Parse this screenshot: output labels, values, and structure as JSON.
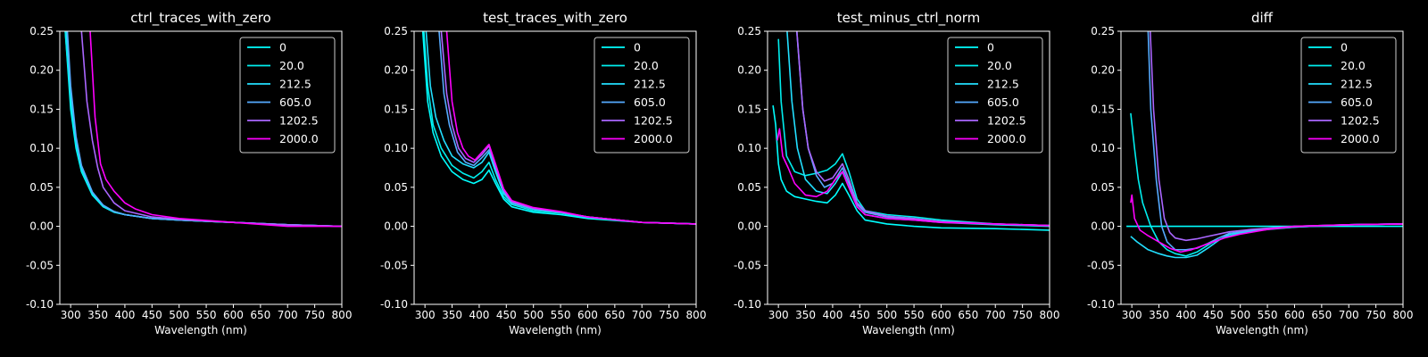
{
  "chart_data": [
    {
      "type": "line",
      "title": "ctrl_traces_with_zero",
      "xlabel": "Wavelength (nm)",
      "ylabel": "",
      "xlim": [
        280,
        800
      ],
      "ylim": [
        -0.1,
        0.25
      ],
      "xticks": [
        300,
        350,
        400,
        450,
        500,
        550,
        600,
        650,
        700,
        750,
        800
      ],
      "yticks": [
        -0.1,
        -0.05,
        0.0,
        0.05,
        0.1,
        0.15,
        0.2,
        0.25
      ],
      "legend_position": "top-right",
      "series": [
        {
          "name": "0",
          "color": "#00ffff",
          "x": [
            290,
            300,
            310,
            320,
            340,
            360,
            380,
            400,
            450,
            500,
            600,
            700,
            800
          ],
          "y": [
            0.25,
            0.15,
            0.1,
            0.07,
            0.04,
            0.025,
            0.018,
            0.015,
            0.01,
            0.008,
            0.005,
            0.002,
            0.0
          ]
        },
        {
          "name": "20.0",
          "color": "#00eeee",
          "x": [
            290,
            300,
            310,
            320,
            340,
            360,
            380,
            400,
            450,
            500,
            600,
            700,
            800
          ],
          "y": [
            0.25,
            0.16,
            0.105,
            0.072,
            0.042,
            0.026,
            0.019,
            0.015,
            0.01,
            0.008,
            0.005,
            0.002,
            0.0
          ]
        },
        {
          "name": "212.5",
          "color": "#22dfff",
          "x": [
            292,
            300,
            310,
            320,
            340,
            360,
            380,
            400,
            450,
            500,
            600,
            700,
            800
          ],
          "y": [
            0.25,
            0.17,
            0.11,
            0.075,
            0.043,
            0.027,
            0.019,
            0.015,
            0.01,
            0.008,
            0.005,
            0.002,
            0.0
          ]
        },
        {
          "name": "605.0",
          "color": "#55aaff",
          "x": [
            294,
            300,
            310,
            320,
            340,
            360,
            380,
            400,
            450,
            500,
            600,
            700,
            800
          ],
          "y": [
            0.25,
            0.18,
            0.115,
            0.078,
            0.044,
            0.027,
            0.019,
            0.015,
            0.01,
            0.008,
            0.005,
            0.002,
            0.0
          ]
        },
        {
          "name": "1202.5",
          "color": "#aa66ff",
          "x": [
            320,
            330,
            340,
            350,
            360,
            380,
            400,
            450,
            500,
            600,
            700,
            800
          ],
          "y": [
            0.25,
            0.16,
            0.11,
            0.075,
            0.05,
            0.03,
            0.02,
            0.012,
            0.009,
            0.005,
            0.002,
            0.0
          ]
        },
        {
          "name": "2000.0",
          "color": "#ff00ff",
          "x": [
            336,
            345,
            355,
            365,
            380,
            400,
            420,
            450,
            500,
            600,
            700,
            800
          ],
          "y": [
            0.25,
            0.14,
            0.08,
            0.06,
            0.045,
            0.03,
            0.022,
            0.015,
            0.01,
            0.005,
            0.0,
            0.0
          ]
        }
      ]
    },
    {
      "type": "line",
      "title": "test_traces_with_zero",
      "xlabel": "Wavelength (nm)",
      "ylabel": "",
      "xlim": [
        280,
        800
      ],
      "ylim": [
        -0.1,
        0.25
      ],
      "xticks": [
        300,
        350,
        400,
        450,
        500,
        550,
        600,
        650,
        700,
        750,
        800
      ],
      "yticks": [
        -0.1,
        -0.05,
        0.0,
        0.05,
        0.1,
        0.15,
        0.2,
        0.25
      ],
      "legend_position": "top-right",
      "series": [
        {
          "name": "0",
          "color": "#00ffff",
          "x": [
            296,
            305,
            315,
            330,
            350,
            370,
            390,
            405,
            418,
            430,
            445,
            460,
            500,
            550,
            600,
            700,
            800
          ],
          "y": [
            0.25,
            0.16,
            0.12,
            0.09,
            0.07,
            0.06,
            0.055,
            0.06,
            0.072,
            0.055,
            0.035,
            0.025,
            0.018,
            0.015,
            0.01,
            0.005,
            0.003
          ]
        },
        {
          "name": "20.0",
          "color": "#00eeee",
          "x": [
            298,
            305,
            315,
            330,
            350,
            370,
            390,
            405,
            418,
            430,
            445,
            460,
            500,
            550,
            600,
            700,
            800
          ],
          "y": [
            0.25,
            0.18,
            0.13,
            0.1,
            0.078,
            0.068,
            0.062,
            0.07,
            0.082,
            0.06,
            0.038,
            0.028,
            0.02,
            0.017,
            0.011,
            0.005,
            0.003
          ]
        },
        {
          "name": "212.5",
          "color": "#22dfff",
          "x": [
            302,
            310,
            320,
            335,
            350,
            370,
            390,
            405,
            418,
            430,
            445,
            460,
            500,
            550,
            600,
            700,
            800
          ],
          "y": [
            0.25,
            0.18,
            0.14,
            0.11,
            0.09,
            0.08,
            0.075,
            0.082,
            0.095,
            0.07,
            0.042,
            0.03,
            0.022,
            0.018,
            0.012,
            0.005,
            0.003
          ]
        },
        {
          "name": "605.0",
          "color": "#55aaff",
          "x": [
            326,
            335,
            345,
            360,
            375,
            390,
            405,
            418,
            430,
            445,
            460,
            500,
            550,
            600,
            700,
            800
          ],
          "y": [
            0.25,
            0.17,
            0.13,
            0.095,
            0.082,
            0.078,
            0.088,
            0.098,
            0.075,
            0.045,
            0.03,
            0.022,
            0.018,
            0.012,
            0.005,
            0.003
          ]
        },
        {
          "name": "1202.5",
          "color": "#aa66ff",
          "x": [
            330,
            340,
            350,
            362,
            375,
            390,
            405,
            418,
            430,
            445,
            460,
            500,
            550,
            600,
            700,
            800
          ],
          "y": [
            0.25,
            0.17,
            0.13,
            0.1,
            0.087,
            0.082,
            0.092,
            0.103,
            0.078,
            0.047,
            0.032,
            0.023,
            0.018,
            0.012,
            0.005,
            0.003
          ]
        },
        {
          "name": "2000.0",
          "color": "#ff00ff",
          "x": [
            340,
            350,
            360,
            370,
            380,
            392,
            405,
            418,
            430,
            445,
            460,
            500,
            550,
            600,
            700,
            800
          ],
          "y": [
            0.25,
            0.16,
            0.12,
            0.1,
            0.09,
            0.085,
            0.095,
            0.105,
            0.08,
            0.048,
            0.033,
            0.024,
            0.019,
            0.012,
            0.005,
            0.003
          ]
        }
      ]
    },
    {
      "type": "line",
      "title": "test_minus_ctrl_norm",
      "xlabel": "Wavelength (nm)",
      "ylabel": "",
      "xlim": [
        280,
        800
      ],
      "ylim": [
        -0.1,
        0.25
      ],
      "xticks": [
        300,
        350,
        400,
        450,
        500,
        550,
        600,
        650,
        700,
        750,
        800
      ],
      "yticks": [
        -0.1,
        -0.05,
        0.0,
        0.05,
        0.1,
        0.15,
        0.2,
        0.25
      ],
      "legend_position": "top-right",
      "series": [
        {
          "name": "0",
          "color": "#00ffff",
          "x": [
            290,
            295,
            300,
            305,
            315,
            330,
            350,
            370,
            390,
            405,
            418,
            430,
            445,
            460,
            500,
            550,
            600,
            700,
            800
          ],
          "y": [
            0.155,
            0.13,
            0.08,
            0.06,
            0.045,
            0.038,
            0.035,
            0.032,
            0.03,
            0.04,
            0.055,
            0.04,
            0.02,
            0.008,
            0.003,
            0.0,
            -0.002,
            -0.003,
            -0.005
          ]
        },
        {
          "name": "20.0",
          "color": "#00eeee",
          "x": [
            300,
            305,
            315,
            330,
            350,
            370,
            390,
            405,
            418,
            430,
            445,
            460,
            500,
            550,
            600,
            700,
            800
          ],
          "y": [
            0.24,
            0.16,
            0.09,
            0.07,
            0.065,
            0.068,
            0.072,
            0.08,
            0.093,
            0.07,
            0.035,
            0.02,
            0.015,
            0.012,
            0.008,
            0.003,
            0.001
          ]
        },
        {
          "name": "212.5",
          "color": "#22dfff",
          "x": [
            316,
            325,
            335,
            350,
            370,
            390,
            405,
            418,
            430,
            445,
            460,
            500,
            550,
            600,
            700,
            800
          ],
          "y": [
            0.25,
            0.16,
            0.1,
            0.06,
            0.045,
            0.042,
            0.055,
            0.07,
            0.05,
            0.025,
            0.015,
            0.01,
            0.008,
            0.005,
            0.002,
            0.0
          ]
        },
        {
          "name": "605.0",
          "color": "#55aaff",
          "x": [
            334,
            345,
            355,
            370,
            385,
            400,
            418,
            430,
            445,
            460,
            500,
            550,
            600,
            700,
            800
          ],
          "y": [
            0.25,
            0.15,
            0.1,
            0.065,
            0.05,
            0.055,
            0.075,
            0.055,
            0.028,
            0.018,
            0.012,
            0.009,
            0.006,
            0.003,
            0.001
          ]
        },
        {
          "name": "1202.5",
          "color": "#aa66ff",
          "x": [
            334,
            345,
            355,
            370,
            385,
            400,
            418,
            430,
            445,
            460,
            500,
            550,
            600,
            700,
            800
          ],
          "y": [
            0.25,
            0.15,
            0.1,
            0.07,
            0.058,
            0.062,
            0.08,
            0.06,
            0.03,
            0.02,
            0.013,
            0.01,
            0.006,
            0.003,
            0.001
          ]
        },
        {
          "name": "2000.0",
          "color": "#ff00ff",
          "x": [
            298,
            302,
            308,
            318,
            330,
            350,
            370,
            390,
            405,
            418,
            430,
            445,
            460,
            500,
            550,
            600,
            700,
            800
          ],
          "y": [
            0.11,
            0.125,
            0.09,
            0.075,
            0.055,
            0.04,
            0.038,
            0.045,
            0.06,
            0.07,
            0.05,
            0.025,
            0.015,
            0.01,
            0.008,
            0.005,
            0.003,
            0.001
          ]
        }
      ]
    },
    {
      "type": "line",
      "title": "diff",
      "xlabel": "Wavelength (nm)",
      "ylabel": "",
      "xlim": [
        280,
        800
      ],
      "ylim": [
        -0.1,
        0.25
      ],
      "xticks": [
        300,
        350,
        400,
        450,
        500,
        550,
        600,
        650,
        700,
        750,
        800
      ],
      "yticks": [
        -0.1,
        -0.05,
        0.0,
        0.05,
        0.1,
        0.15,
        0.2,
        0.25
      ],
      "legend_position": "top-right",
      "series": [
        {
          "name": "0",
          "color": "#00ffff",
          "x": [
            290,
            800
          ],
          "y": [
            0.0,
            0.0
          ]
        },
        {
          "name": "20.0",
          "color": "#00eeee",
          "x": [
            298,
            305,
            312,
            320,
            335,
            350,
            365,
            380,
            400,
            420,
            450,
            480,
            520,
            600,
            700,
            800
          ],
          "y": [
            0.145,
            0.1,
            0.06,
            0.03,
            0.0,
            -0.02,
            -0.03,
            -0.035,
            -0.038,
            -0.033,
            -0.02,
            -0.012,
            -0.006,
            0.0,
            0.002,
            0.003
          ]
        },
        {
          "name": "212.5",
          "color": "#22dfff",
          "x": [
            298,
            310,
            330,
            350,
            365,
            380,
            400,
            420,
            440,
            460,
            480,
            520,
            600,
            700,
            800
          ],
          "y": [
            -0.013,
            -0.02,
            -0.03,
            -0.035,
            -0.038,
            -0.04,
            -0.04,
            -0.037,
            -0.028,
            -0.018,
            -0.01,
            -0.006,
            -0.001,
            0.002,
            0.003
          ]
        },
        {
          "name": "605.0",
          "color": "#55aaff",
          "x": [
            330,
            335,
            345,
            355,
            365,
            380,
            400,
            420,
            440,
            460,
            480,
            520,
            600,
            700,
            800
          ],
          "y": [
            0.25,
            0.15,
            0.06,
            0.0,
            -0.02,
            -0.03,
            -0.03,
            -0.028,
            -0.022,
            -0.015,
            -0.009,
            -0.005,
            -0.001,
            0.002,
            0.003
          ]
        },
        {
          "name": "1202.5",
          "color": "#aa66ff",
          "x": [
            334,
            340,
            350,
            360,
            370,
            380,
            400,
            420,
            440,
            460,
            480,
            520,
            600,
            700,
            800
          ],
          "y": [
            0.25,
            0.15,
            0.06,
            0.01,
            -0.008,
            -0.015,
            -0.018,
            -0.016,
            -0.013,
            -0.01,
            -0.007,
            -0.004,
            0.0,
            0.002,
            0.003
          ]
        },
        {
          "name": "2000.0",
          "color": "#ff00ff",
          "x": [
            298,
            300,
            305,
            315,
            330,
            350,
            370,
            390,
            410,
            430,
            450,
            470,
            500,
            550,
            600,
            700,
            800
          ],
          "y": [
            0.03,
            0.04,
            0.01,
            -0.005,
            -0.012,
            -0.02,
            -0.028,
            -0.033,
            -0.03,
            -0.025,
            -0.02,
            -0.015,
            -0.01,
            -0.004,
            0.0,
            0.002,
            0.003
          ]
        }
      ]
    }
  ]
}
